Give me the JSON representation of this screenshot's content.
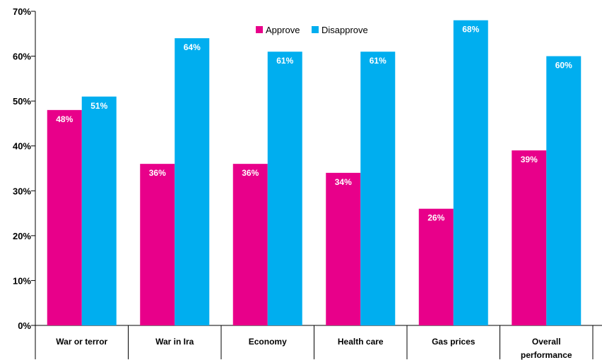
{
  "chart_data": {
    "type": "bar",
    "categories": [
      "War or terror",
      "War in Ira",
      "Economy",
      "Health care",
      "Gas prices",
      "Overall performance"
    ],
    "category_lines": [
      [
        "War or terror"
      ],
      [
        "War in Ira"
      ],
      [
        "Economy"
      ],
      [
        "Health care"
      ],
      [
        "Gas prices"
      ],
      [
        "Overall",
        "performance"
      ]
    ],
    "series": [
      {
        "name": "Approve",
        "color": "#e8008a",
        "values": [
          48,
          36,
          36,
          34,
          26,
          39
        ],
        "labels": [
          "48%",
          "36%",
          "36%",
          "34%",
          "26%",
          "39%"
        ]
      },
      {
        "name": "Disapprove",
        "color": "#00aeef",
        "values": [
          51,
          64,
          61,
          61,
          68,
          60
        ],
        "labels": [
          "51%",
          "64%",
          "61%",
          "61%",
          "68%",
          "60%"
        ]
      }
    ],
    "ylim": [
      0,
      70
    ],
    "yticks": [
      0,
      10,
      20,
      30,
      40,
      50,
      60,
      70
    ],
    "ytick_labels": [
      "0%",
      "10%",
      "20%",
      "30%",
      "40%",
      "50%",
      "60%",
      "70%"
    ],
    "title": "",
    "xlabel": "",
    "ylabel": "",
    "grid": false,
    "legend": "top-center"
  }
}
